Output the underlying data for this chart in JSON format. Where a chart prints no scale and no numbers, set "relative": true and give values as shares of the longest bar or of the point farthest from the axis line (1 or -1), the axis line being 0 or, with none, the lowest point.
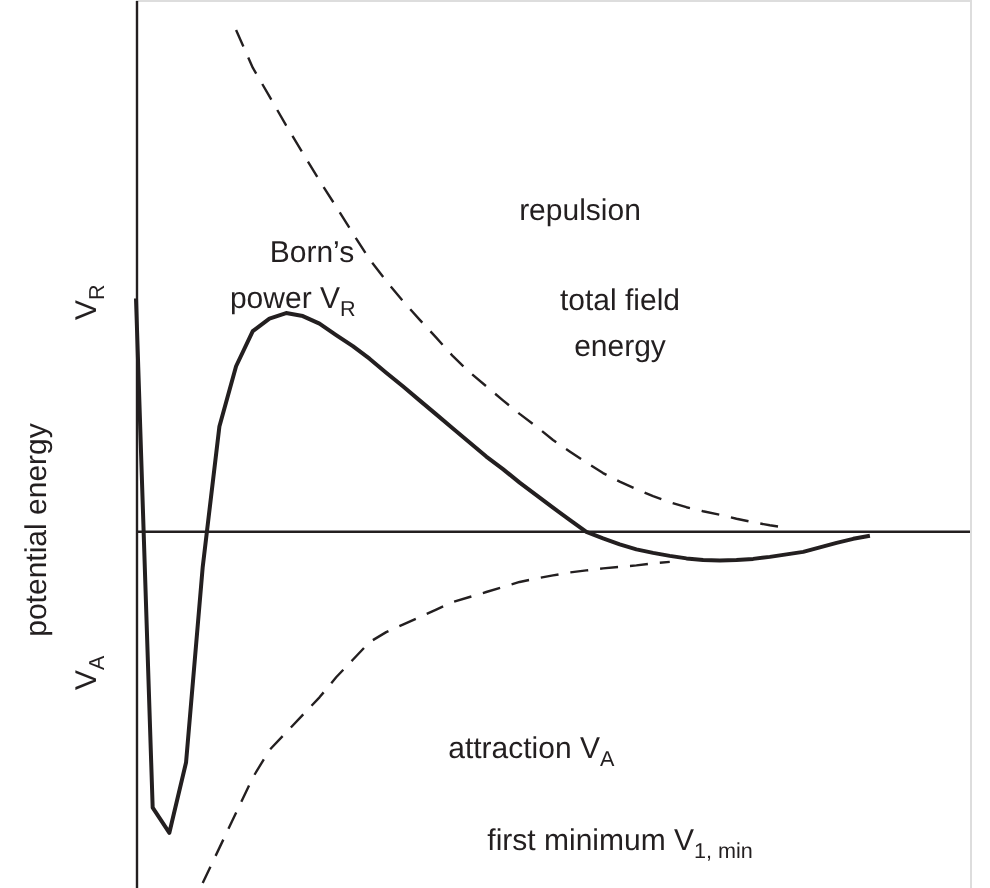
{
  "chart_data": {
    "type": "line",
    "relative": true,
    "ylabel": "potential energy",
    "grid": false,
    "marker": "none",
    "categories": [
      null,
      null,
      null,
      null,
      null,
      null,
      null,
      null,
      null,
      null,
      null,
      null,
      null,
      null,
      null,
      null,
      null,
      null,
      null,
      null,
      null,
      null,
      null,
      null,
      null,
      null,
      null,
      null,
      null,
      null,
      null,
      null,
      null,
      null,
      null,
      null,
      null,
      null,
      null,
      null,
      null,
      null,
      null,
      null,
      null,
      null,
      null,
      null,
      null,
      null,
      null
    ],
    "series": [
      {
        "color": "#231f20",
        "line_style": "solid",
        "values": [
          0.465,
          -0.55,
          -0.6,
          -0.46,
          -0.07,
          0.21,
          0.33,
          0.4,
          0.425,
          0.436,
          0.43,
          0.415,
          0.392,
          0.37,
          0.345,
          0.317,
          0.29,
          0.262,
          0.234,
          0.206,
          0.178,
          0.15,
          0.125,
          0.098,
          0.073,
          0.048,
          0.024,
          0.0,
          -0.013,
          -0.025,
          -0.035,
          -0.042,
          -0.048,
          -0.053,
          -0.056,
          -0.057,
          -0.056,
          -0.054,
          -0.05,
          -0.045,
          -0.04,
          -0.031,
          -0.022,
          -0.014,
          -0.008,
          null,
          null,
          null,
          null,
          null,
          null
        ]
      },
      {
        "color": "#231f20",
        "line_style": "dashed",
        "values": [
          null,
          null,
          null,
          null,
          null,
          null,
          1.0,
          0.925,
          0.868,
          0.81,
          0.755,
          0.7,
          0.648,
          0.595,
          0.543,
          0.5,
          0.46,
          0.423,
          0.387,
          0.35,
          0.318,
          0.29,
          0.262,
          0.235,
          0.21,
          0.183,
          0.16,
          0.138,
          0.117,
          0.1,
          0.085,
          0.071,
          0.059,
          0.049,
          0.041,
          0.034,
          0.026,
          0.019,
          0.013,
          0.008,
          null,
          null,
          null,
          null,
          null,
          null,
          null,
          null,
          null,
          null,
          null
        ]
      },
      {
        "color": "#231f20",
        "line_style": "dashed",
        "values": [
          null,
          null,
          null,
          null,
          -0.7,
          -0.63,
          -0.56,
          -0.49,
          -0.435,
          -0.4,
          -0.365,
          -0.33,
          -0.29,
          -0.255,
          -0.22,
          -0.2,
          -0.185,
          -0.17,
          -0.155,
          -0.14,
          -0.13,
          -0.12,
          -0.11,
          -0.1,
          -0.093,
          -0.087,
          -0.081,
          -0.077,
          -0.073,
          -0.07,
          -0.067,
          -0.063,
          -0.06,
          null,
          null,
          null,
          null,
          null,
          null,
          null,
          null,
          null,
          null,
          null,
          null,
          null,
          null,
          null,
          null,
          null,
          null
        ]
      }
    ],
    "annotations": [
      "repulsion",
      "Born’s\npower V$_{R}$",
      "total field\nenergy",
      "attraction V$_{A}$",
      "first minimum V$_{1, min}$",
      "V$_{R}$",
      "V$_{A}$"
    ]
  }
}
